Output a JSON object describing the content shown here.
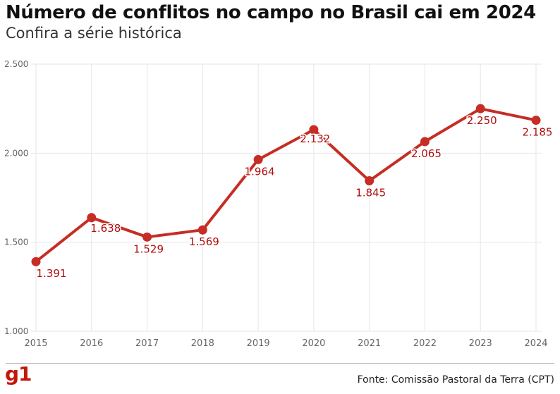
{
  "header": {
    "title": "Número de conflitos no campo no Brasil cai em 2024",
    "subtitle": "Confira a série histórica"
  },
  "footer": {
    "logo": "g1",
    "source": "Fonte: Comissão Pastoral da Terra (CPT)"
  },
  "colors": {
    "series": "#c62d25",
    "label": "#b00e0e",
    "grid": "#e6e6e6",
    "tick": "#666666",
    "brand": "#c4170c"
  },
  "chart_data": {
    "type": "line",
    "title": "Número de conflitos no campo no Brasil cai em 2024",
    "subtitle": "Confira a série histórica",
    "x": [
      "2015",
      "2016",
      "2017",
      "2018",
      "2019",
      "2020",
      "2021",
      "2022",
      "2023",
      "2024"
    ],
    "series": [
      {
        "values": [
          1391,
          1638,
          1529,
          1569,
          1964,
          2132,
          1845,
          2065,
          2250,
          2185
        ],
        "labels": [
          "1.391",
          "1.638",
          "1.529",
          "1.569",
          "1.964",
          "2.132",
          "1.845",
          "2.065",
          "2.250",
          "2.185"
        ]
      }
    ],
    "ylim": [
      1000,
      2500
    ],
    "yticks": [
      1000,
      1500,
      2000,
      2500
    ],
    "ytick_labels": [
      "1.000",
      "1.500",
      "2.000",
      "2.500"
    ],
    "grid": true,
    "legend": "none",
    "source": "Fonte: Comissão Pastoral da Terra (CPT)"
  }
}
